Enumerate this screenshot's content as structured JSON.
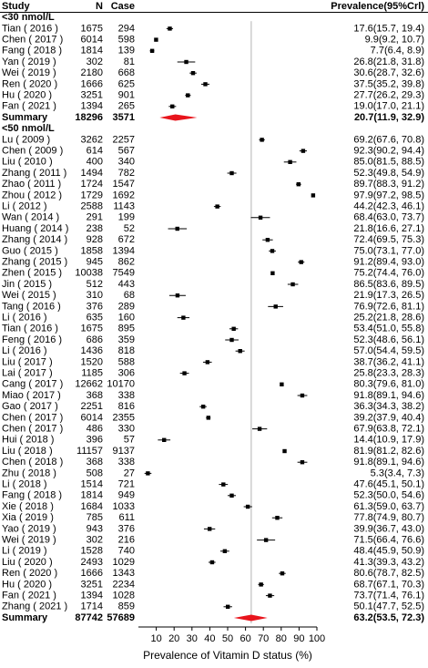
{
  "chart_data": {
    "type": "forest",
    "columns": [
      "Study",
      "N",
      "Case",
      "Prevalence(95%Crl)"
    ],
    "x_label": "Prevalence of Vitamin D status (%)",
    "xlim": [
      0,
      100
    ],
    "xticks": [
      10,
      20,
      30,
      40,
      50,
      60,
      70,
      80,
      90,
      100
    ],
    "marker_color": "#000000",
    "summary_color": "#e8141c",
    "reference_color": "#c0c0c0",
    "groups": [
      {
        "label": "<30 nmol/L",
        "rows": [
          {
            "study": "Tian ( 2016 )",
            "n": 1675,
            "case": 294,
            "value": 17.6,
            "lower": 15.7,
            "upper": 19.4,
            "value_label": "17.6(15.7, 19.4)"
          },
          {
            "study": "Chen ( 2017 )",
            "n": 6014,
            "case": 598,
            "value": 9.9,
            "lower": 9.2,
            "upper": 10.7,
            "value_label": "9.9(9.2, 10.7)"
          },
          {
            "study": "Fang ( 2018 )",
            "n": 1814,
            "case": 139,
            "value": 7.7,
            "lower": 6.4,
            "upper": 8.9,
            "value_label": "7.7(6.4, 8.9)"
          },
          {
            "study": "Yan ( 2019 )",
            "n": 302,
            "case": 81,
            "value": 26.8,
            "lower": 21.8,
            "upper": 31.8,
            "value_label": "26.8(21.8, 31.8)"
          },
          {
            "study": "Wei ( 2019 )",
            "n": 2180,
            "case": 668,
            "value": 30.6,
            "lower": 28.7,
            "upper": 32.6,
            "value_label": "30.6(28.7, 32.6)"
          },
          {
            "study": "Ren ( 2020 )",
            "n": 1666,
            "case": 625,
            "value": 37.5,
            "lower": 35.2,
            "upper": 39.8,
            "value_label": "37.5(35.2, 39.8)"
          },
          {
            "study": "Hu ( 2020 )",
            "n": 3251,
            "case": 901,
            "value": 27.7,
            "lower": 26.2,
            "upper": 29.3,
            "value_label": "27.7(26.2, 29.3)"
          },
          {
            "study": "Fan ( 2021 )",
            "n": 1394,
            "case": 265,
            "value": 19.0,
            "lower": 17.0,
            "upper": 21.1,
            "value_label": "19.0(17.0, 21.1)"
          }
        ],
        "summary": {
          "study": "Summary",
          "n": 18296,
          "case": 3571,
          "value": 20.7,
          "lower": 11.9,
          "upper": 32.9,
          "value_label": "20.7(11.9, 32.9)"
        }
      },
      {
        "label": "<50 nmol/L",
        "rows": [
          {
            "study": "Lu ( 2009 )",
            "n": 3262,
            "case": 2257,
            "value": 69.2,
            "lower": 67.6,
            "upper": 70.8,
            "value_label": "69.2(67.6, 70.8)"
          },
          {
            "study": "Chen ( 2009 )",
            "n": 614,
            "case": 567,
            "value": 92.3,
            "lower": 90.2,
            "upper": 94.4,
            "value_label": "92.3(90.2, 94.4)"
          },
          {
            "study": "Liu ( 2010 )",
            "n": 400,
            "case": 340,
            "value": 85.0,
            "lower": 81.5,
            "upper": 88.5,
            "value_label": "85.0(81.5, 88.5)"
          },
          {
            "study": "Zhang ( 2011 )",
            "n": 1494,
            "case": 782,
            "value": 52.3,
            "lower": 49.8,
            "upper": 54.9,
            "value_label": "52.3(49.8, 54.9)"
          },
          {
            "study": "Zhao ( 2011 )",
            "n": 1724,
            "case": 1547,
            "value": 89.7,
            "lower": 88.3,
            "upper": 91.2,
            "value_label": "89.7(88.3, 91.2)"
          },
          {
            "study": "Zhou ( 2012 )",
            "n": 1729,
            "case": 1692,
            "value": 97.9,
            "lower": 97.2,
            "upper": 98.5,
            "value_label": "97.9(97.2, 98.5)"
          },
          {
            "study": "Li ( 2012 )",
            "n": 2588,
            "case": 1143,
            "value": 44.2,
            "lower": 42.3,
            "upper": 46.1,
            "value_label": "44.2(42.3, 46.1)"
          },
          {
            "study": "Wan ( 2014 )",
            "n": 291,
            "case": 199,
            "value": 68.4,
            "lower": 63.0,
            "upper": 73.7,
            "value_label": "68.4(63.0, 73.7)"
          },
          {
            "study": "Huang ( 2014 )",
            "n": 238,
            "case": 52,
            "value": 21.8,
            "lower": 16.6,
            "upper": 27.1,
            "value_label": "21.8(16.6, 27.1)"
          },
          {
            "study": "Zhang ( 2014 )",
            "n": 928,
            "case": 672,
            "value": 72.4,
            "lower": 69.5,
            "upper": 75.3,
            "value_label": "72.4(69.5, 75.3)"
          },
          {
            "study": "Guo ( 2015 )",
            "n": 1858,
            "case": 1394,
            "value": 75.0,
            "lower": 73.1,
            "upper": 77.0,
            "value_label": "75.0(73.1, 77.0)"
          },
          {
            "study": "Zhang ( 2015 )",
            "n": 945,
            "case": 862,
            "value": 91.2,
            "lower": 89.4,
            "upper": 93.0,
            "value_label": "91.2(89.4, 93.0)"
          },
          {
            "study": "Zhen ( 2015 )",
            "n": 10038,
            "case": 7549,
            "value": 75.2,
            "lower": 74.4,
            "upper": 76.0,
            "value_label": "75.2(74.4, 76.0)"
          },
          {
            "study": "Jin ( 2015 )",
            "n": 512,
            "case": 443,
            "value": 86.5,
            "lower": 83.6,
            "upper": 89.5,
            "value_label": "86.5(83.6, 89.5)"
          },
          {
            "study": "Wei ( 2015 )",
            "n": 310,
            "case": 68,
            "value": 21.9,
            "lower": 17.3,
            "upper": 26.5,
            "value_label": "21.9(17.3, 26.5)"
          },
          {
            "study": "Tang ( 2016 )",
            "n": 376,
            "case": 289,
            "value": 76.9,
            "lower": 72.6,
            "upper": 81.1,
            "value_label": "76.9(72.6, 81.1)"
          },
          {
            "study": "Li ( 2016 )",
            "n": 635,
            "case": 160,
            "value": 25.2,
            "lower": 21.8,
            "upper": 28.6,
            "value_label": "25.2(21.8, 28.6)"
          },
          {
            "study": "Tian ( 2016 )",
            "n": 1675,
            "case": 895,
            "value": 53.4,
            "lower": 51.0,
            "upper": 55.8,
            "value_label": "53.4(51.0, 55.8)"
          },
          {
            "study": "Feng ( 2016 )",
            "n": 686,
            "case": 359,
            "value": 52.3,
            "lower": 48.6,
            "upper": 56.1,
            "value_label": "52.3(48.6, 56.1)"
          },
          {
            "study": "Li ( 2016 )",
            "n": 1436,
            "case": 818,
            "value": 57.0,
            "lower": 54.4,
            "upper": 59.5,
            "value_label": "57.0(54.4, 59.5)"
          },
          {
            "study": "Liu ( 2017 )",
            "n": 1520,
            "case": 588,
            "value": 38.7,
            "lower": 36.2,
            "upper": 41.1,
            "value_label": "38.7(36.2, 41.1)"
          },
          {
            "study": "Lai ( 2017 )",
            "n": 1185,
            "case": 306,
            "value": 25.8,
            "lower": 23.3,
            "upper": 28.3,
            "value_label": "25.8(23.3, 28.3)"
          },
          {
            "study": "Cang ( 2017 )",
            "n": 12662,
            "case": 10170,
            "value": 80.3,
            "lower": 79.6,
            "upper": 81.0,
            "value_label": "80.3(79.6, 81.0)"
          },
          {
            "study": "Miao ( 2017 )",
            "n": 368,
            "case": 338,
            "value": 91.8,
            "lower": 89.1,
            "upper": 94.6,
            "value_label": "91.8(89.1, 94.6)"
          },
          {
            "study": "Gao ( 2017 )",
            "n": 2251,
            "case": 816,
            "value": 36.3,
            "lower": 34.3,
            "upper": 38.2,
            "value_label": "36.3(34.3, 38.2)"
          },
          {
            "study": "Chen ( 2017 )",
            "n": 6014,
            "case": 2355,
            "value": 39.2,
            "lower": 37.9,
            "upper": 40.4,
            "value_label": "39.2(37.9, 40.4)"
          },
          {
            "study": "Chen ( 2017 )",
            "n": 486,
            "case": 330,
            "value": 67.9,
            "lower": 63.8,
            "upper": 72.1,
            "value_label": "67.9(63.8, 72.1)"
          },
          {
            "study": "Hui ( 2018 )",
            "n": 396,
            "case": 57,
            "value": 14.4,
            "lower": 10.9,
            "upper": 17.9,
            "value_label": "14.4(10.9, 17.9)"
          },
          {
            "study": "Liu ( 2018 )",
            "n": 11157,
            "case": 9137,
            "value": 81.9,
            "lower": 81.2,
            "upper": 82.6,
            "value_label": "81.9(81.2, 82.6)"
          },
          {
            "study": "Chen ( 2018 )",
            "n": 368,
            "case": 338,
            "value": 91.8,
            "lower": 89.1,
            "upper": 94.6,
            "value_label": "91.8(89.1, 94.6)"
          },
          {
            "study": "Zhu ( 2018 )",
            "n": 508,
            "case": 27,
            "value": 5.3,
            "lower": 3.4,
            "upper": 7.3,
            "value_label": "5.3(3.4, 7.3)"
          },
          {
            "study": "Li ( 2018 )",
            "n": 1514,
            "case": 721,
            "value": 47.6,
            "lower": 45.1,
            "upper": 50.1,
            "value_label": "47.6(45.1, 50.1)"
          },
          {
            "study": "Fang ( 2018 )",
            "n": 1814,
            "case": 949,
            "value": 52.3,
            "lower": 50.0,
            "upper": 54.6,
            "value_label": "52.3(50.0, 54.6)"
          },
          {
            "study": "Xie ( 2018 )",
            "n": 1684,
            "case": 1033,
            "value": 61.3,
            "lower": 59.0,
            "upper": 63.7,
            "value_label": "61.3(59.0, 63.7)"
          },
          {
            "study": "Xia ( 2019 )",
            "n": 785,
            "case": 611,
            "value": 77.8,
            "lower": 74.9,
            "upper": 80.7,
            "value_label": "77.8(74.9, 80.7)"
          },
          {
            "study": "Yao ( 2019 )",
            "n": 943,
            "case": 376,
            "value": 39.9,
            "lower": 36.7,
            "upper": 43.0,
            "value_label": "39.9(36.7, 43.0)"
          },
          {
            "study": "Wei ( 2019 )",
            "n": 302,
            "case": 216,
            "value": 71.5,
            "lower": 66.4,
            "upper": 76.6,
            "value_label": "71.5(66.4, 76.6)"
          },
          {
            "study": "Li ( 2019 )",
            "n": 1528,
            "case": 740,
            "value": 48.4,
            "lower": 45.9,
            "upper": 50.9,
            "value_label": "48.4(45.9, 50.9)"
          },
          {
            "study": "Liu ( 2020 )",
            "n": 2493,
            "case": 1029,
            "value": 41.3,
            "lower": 39.3,
            "upper": 43.2,
            "value_label": "41.3(39.3, 43.2)"
          },
          {
            "study": "Ren ( 2020 )",
            "n": 1666,
            "case": 1343,
            "value": 80.6,
            "lower": 78.7,
            "upper": 82.5,
            "value_label": "80.6(78.7, 82.5)"
          },
          {
            "study": "Hu ( 2020 )",
            "n": 3251,
            "case": 2234,
            "value": 68.7,
            "lower": 67.1,
            "upper": 70.3,
            "value_label": "68.7(67.1, 70.3)"
          },
          {
            "study": "Fan ( 2021 )",
            "n": 1394,
            "case": 1028,
            "value": 73.7,
            "lower": 71.4,
            "upper": 76.1,
            "value_label": "73.7(71.4, 76.1)"
          },
          {
            "study": "Zhang ( 2021 )",
            "n": 1714,
            "case": 859,
            "value": 50.1,
            "lower": 47.7,
            "upper": 52.5,
            "value_label": "50.1(47.7, 52.5)"
          }
        ],
        "summary": {
          "study": "Summary",
          "n": 87742,
          "case": 57689,
          "value": 63.2,
          "lower": 53.5,
          "upper": 72.3,
          "value_label": "63.2(53.5, 72.3)"
        }
      }
    ]
  }
}
